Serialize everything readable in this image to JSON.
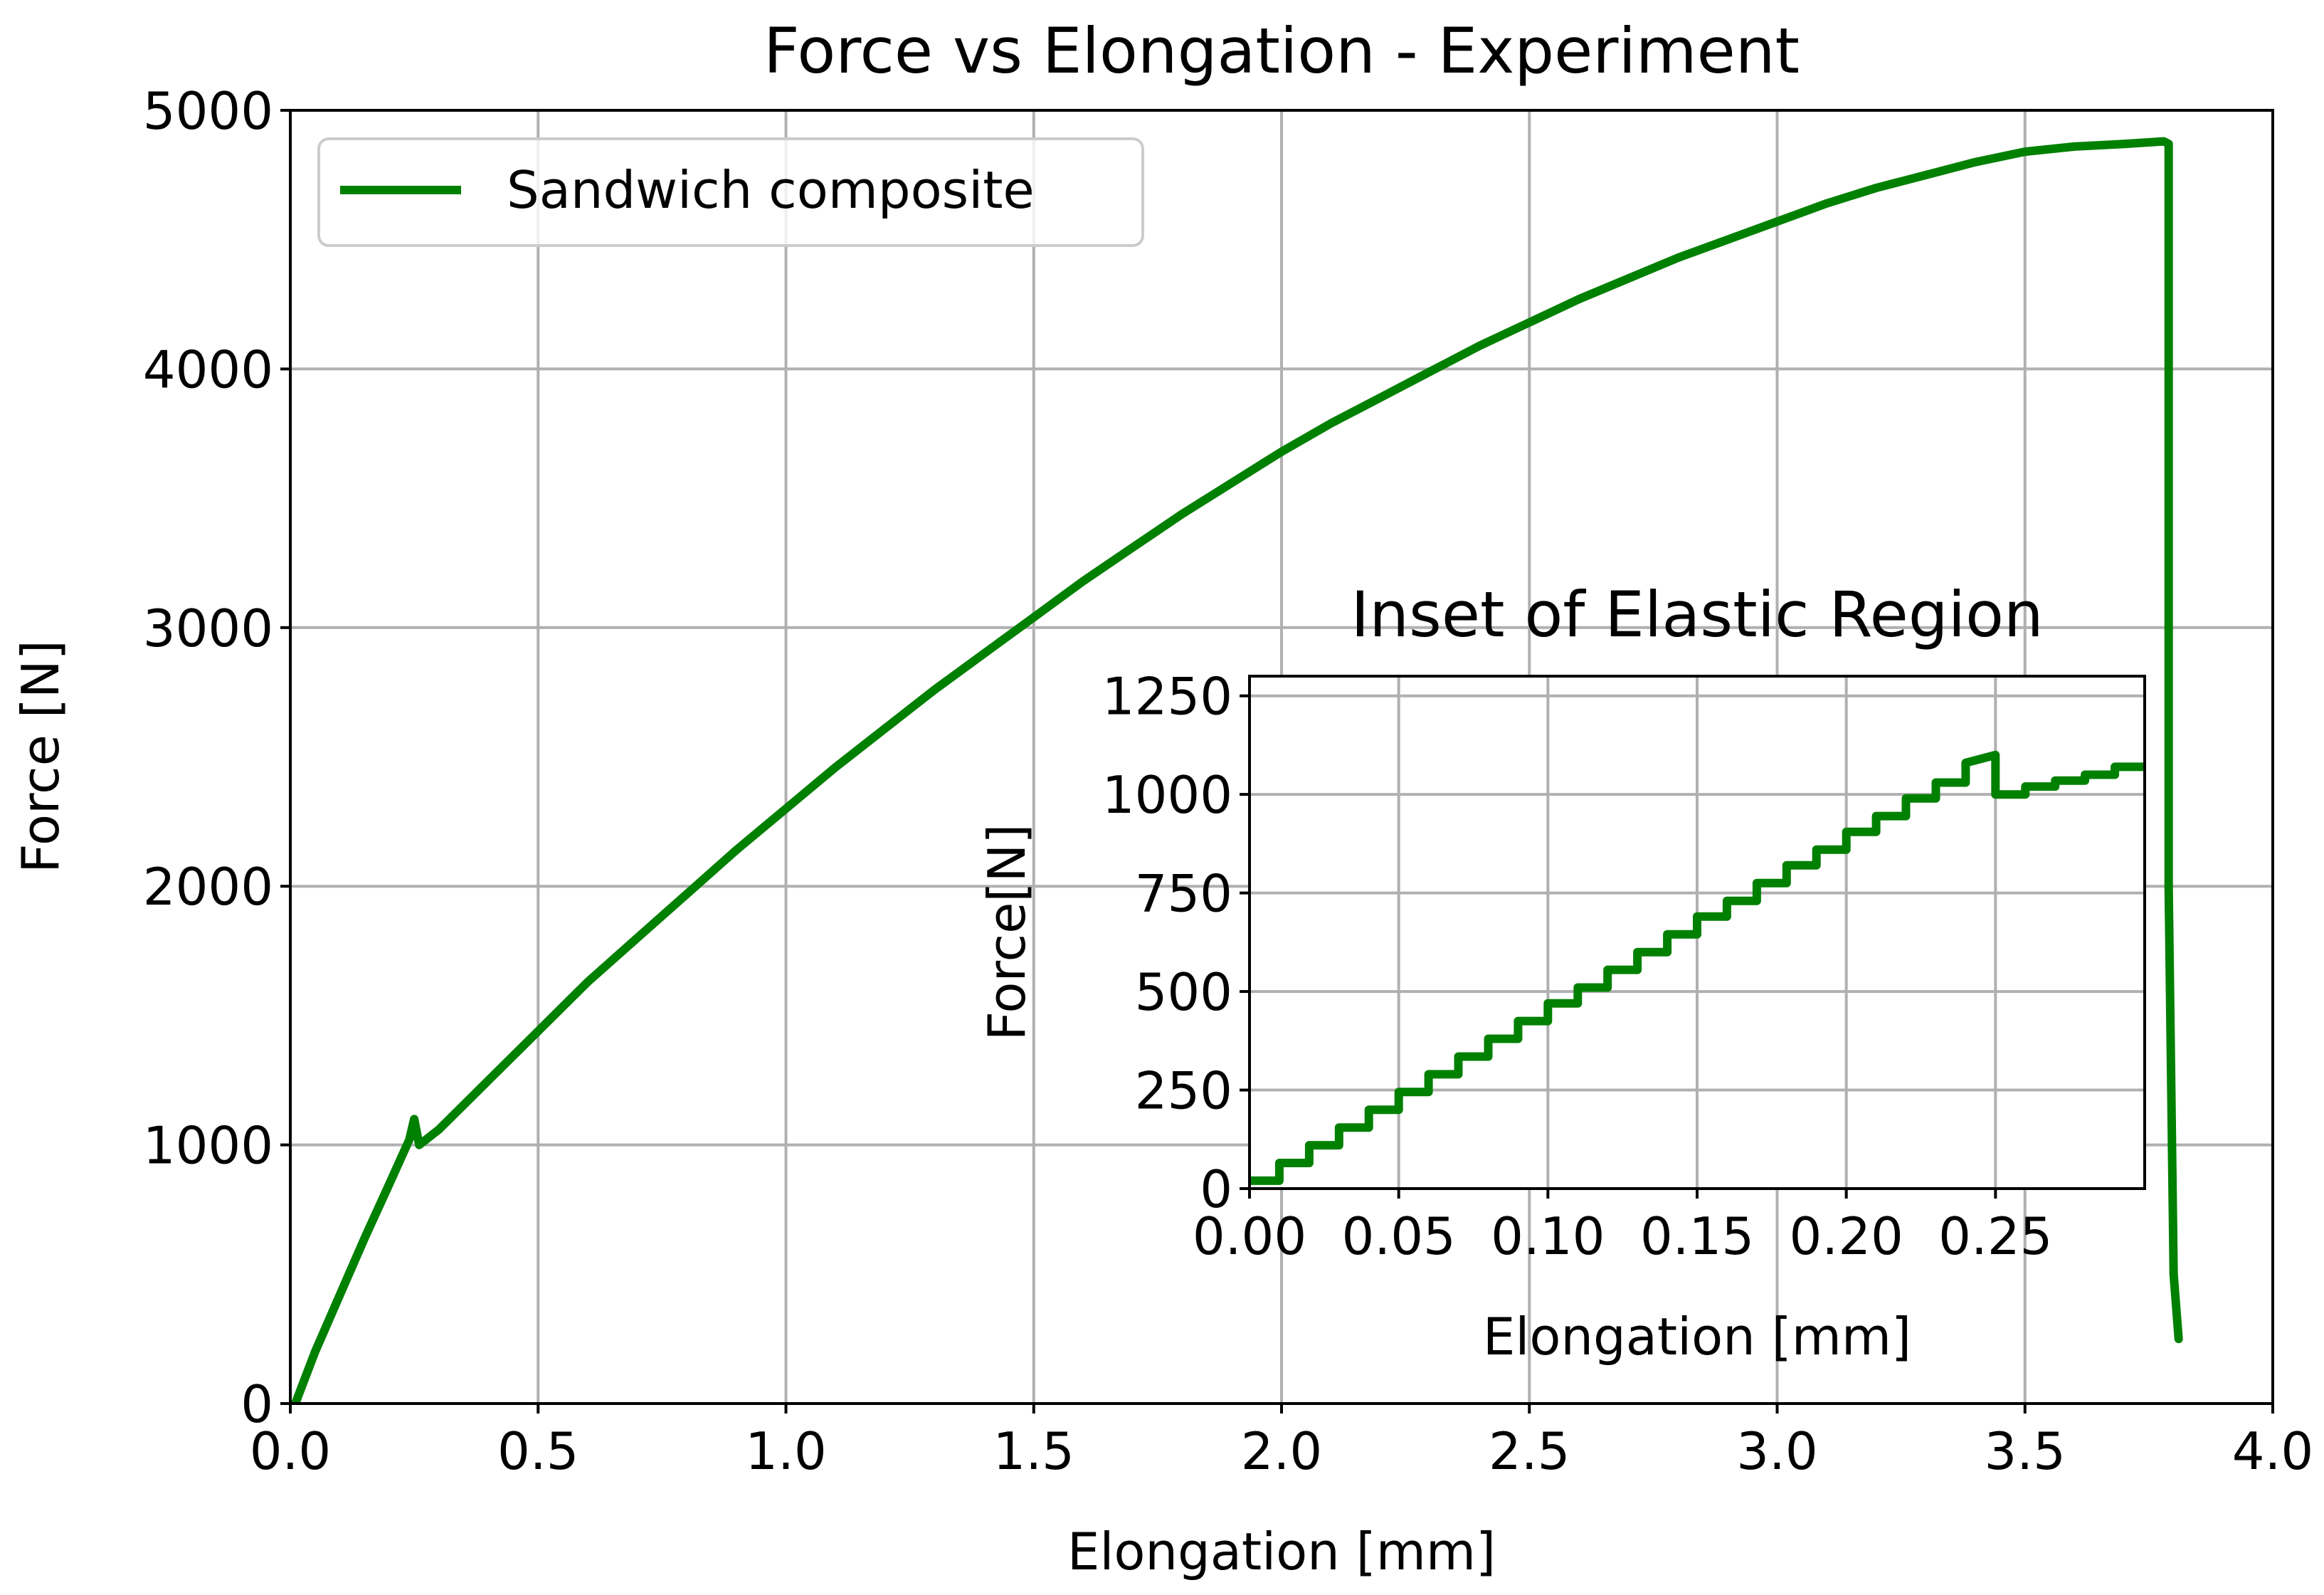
{
  "chart_data": [
    {
      "id": "main",
      "type": "line",
      "title": "Force vs Elongation - Experiment",
      "xlabel": "Elongation [mm]",
      "ylabel": "Force [N]",
      "xlim": [
        0.0,
        4.0
      ],
      "ylim": [
        0,
        5000
      ],
      "xticks": [
        "0.0",
        "0.5",
        "1.0",
        "1.5",
        "2.0",
        "2.5",
        "3.0",
        "3.5",
        "4.0"
      ],
      "yticks": [
        "0",
        "1000",
        "2000",
        "3000",
        "4000",
        "5000"
      ],
      "grid": true,
      "legend": {
        "position": "top-left",
        "entries": [
          "Sandwich composite"
        ]
      },
      "series": [
        {
          "name": "Sandwich composite",
          "color": "#008000",
          "x": [
            0.01,
            0.05,
            0.1,
            0.15,
            0.2,
            0.24,
            0.25,
            0.26,
            0.3,
            0.4,
            0.5,
            0.6,
            0.7,
            0.8,
            0.9,
            1.0,
            1.1,
            1.2,
            1.3,
            1.4,
            1.5,
            1.6,
            1.7,
            1.8,
            1.9,
            2.0,
            2.1,
            2.2,
            2.3,
            2.4,
            2.5,
            2.6,
            2.7,
            2.8,
            2.9,
            3.0,
            3.1,
            3.2,
            3.3,
            3.4,
            3.5,
            3.6,
            3.7,
            3.78,
            3.79,
            3.79,
            3.8,
            3.81
          ],
          "y": [
            0,
            200,
            420,
            640,
            850,
            1020,
            1100,
            1000,
            1060,
            1250,
            1440,
            1630,
            1800,
            1970,
            2140,
            2300,
            2460,
            2610,
            2760,
            2900,
            3040,
            3180,
            3310,
            3440,
            3560,
            3680,
            3790,
            3890,
            3990,
            4090,
            4180,
            4270,
            4350,
            4430,
            4500,
            4570,
            4640,
            4700,
            4750,
            4800,
            4840,
            4860,
            4870,
            4880,
            4870,
            2000,
            500,
            250
          ]
        }
      ]
    },
    {
      "id": "inset",
      "type": "line",
      "title": "Inset of Elastic Region",
      "xlabel": "Elongation [mm]",
      "ylabel": "Force[N]",
      "xlim": [
        0.0,
        0.3
      ],
      "ylim": [
        0,
        1300
      ],
      "xticks": [
        "0.00",
        "0.05",
        "0.10",
        "0.15",
        "0.20",
        "0.25"
      ],
      "yticks": [
        "0",
        "250",
        "500",
        "750",
        "1000",
        "1250"
      ],
      "grid": true,
      "series": [
        {
          "name": "Sandwich composite",
          "color": "#008000",
          "x": [
            0.0,
            0.01,
            0.01,
            0.02,
            0.02,
            0.03,
            0.03,
            0.04,
            0.04,
            0.05,
            0.05,
            0.06,
            0.06,
            0.07,
            0.07,
            0.08,
            0.08,
            0.09,
            0.09,
            0.1,
            0.1,
            0.11,
            0.11,
            0.12,
            0.12,
            0.13,
            0.13,
            0.14,
            0.14,
            0.15,
            0.15,
            0.16,
            0.16,
            0.17,
            0.17,
            0.18,
            0.18,
            0.19,
            0.19,
            0.2,
            0.2,
            0.21,
            0.21,
            0.22,
            0.22,
            0.23,
            0.23,
            0.24,
            0.24,
            0.25,
            0.25,
            0.26,
            0.26,
            0.27,
            0.27,
            0.28,
            0.28,
            0.29,
            0.29,
            0.3
          ],
          "y": [
            20,
            20,
            65,
            65,
            110,
            110,
            155,
            155,
            200,
            200,
            245,
            245,
            290,
            290,
            335,
            335,
            380,
            380,
            425,
            425,
            470,
            470,
            510,
            510,
            555,
            555,
            600,
            600,
            645,
            645,
            690,
            690,
            730,
            730,
            775,
            775,
            820,
            820,
            860,
            860,
            905,
            905,
            945,
            945,
            990,
            990,
            1030,
            1030,
            1080,
            1100,
            1000,
            1000,
            1020,
            1020,
            1035,
            1035,
            1050,
            1050,
            1070,
            1070
          ]
        }
      ]
    }
  ]
}
